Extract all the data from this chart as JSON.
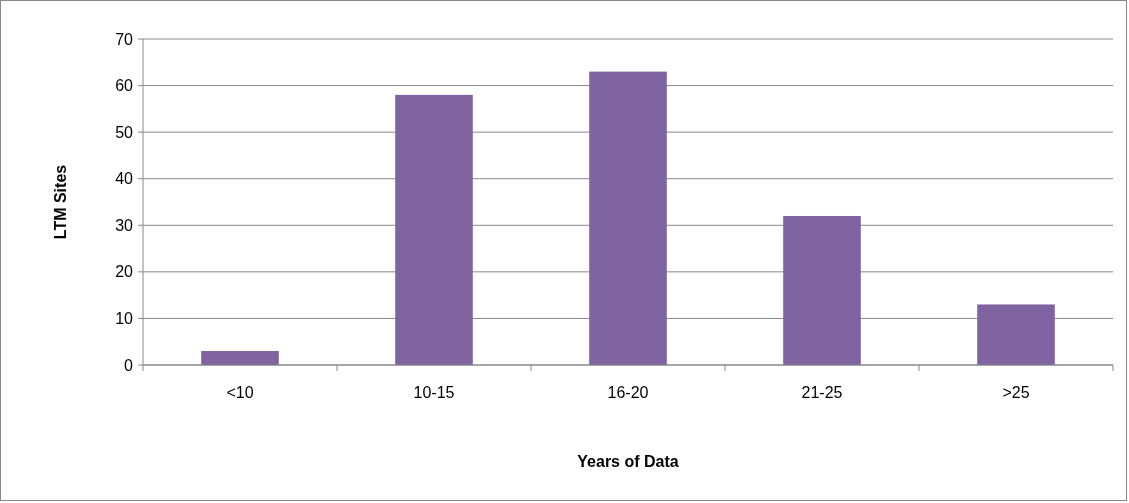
{
  "chart_data": {
    "type": "bar",
    "xlabel": "Years of Data",
    "ylabel": "LTM Sites",
    "categories": [
      "<10",
      "10-15",
      "16-20",
      "21-25",
      ">25"
    ],
    "values": [
      3,
      58,
      63,
      32,
      13
    ],
    "color": "#8064a2",
    "ylim": [
      0,
      70
    ],
    "yticks": [
      0,
      10,
      20,
      30,
      40,
      50,
      60,
      70
    ],
    "grid": "y"
  }
}
